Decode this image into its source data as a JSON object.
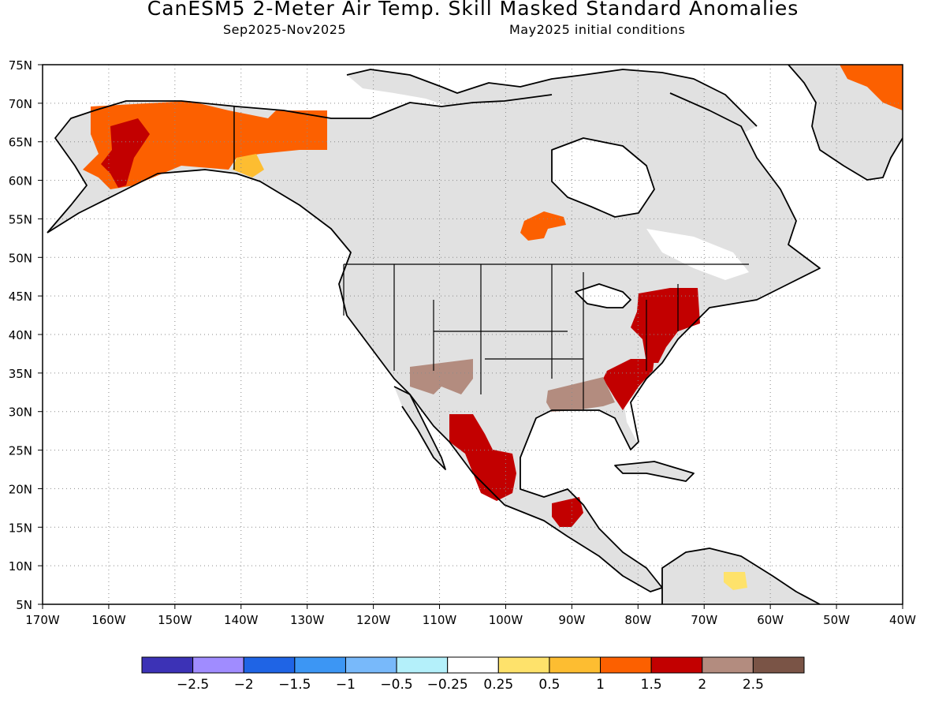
{
  "title": "CanESM5 2-Meter Air Temp. Skill Masked Standard Anomalies",
  "subtitle_left": "Sep2025-Nov2025",
  "subtitle_right": "May2025 initial conditions",
  "map": {
    "lon_min": -170,
    "lon_max": -40,
    "lat_min": 5,
    "lat_max": 75,
    "lat_labels": [
      "75N",
      "70N",
      "65N",
      "60N",
      "55N",
      "50N",
      "45N",
      "40N",
      "35N",
      "30N",
      "25N",
      "20N",
      "15N",
      "10N",
      "5N"
    ],
    "lon_labels": [
      "170W",
      "160W",
      "150W",
      "140W",
      "130W",
      "120W",
      "110W",
      "100W",
      "90W",
      "80W",
      "70W",
      "60W",
      "50W",
      "40W"
    ],
    "grid": "dotted",
    "masked_fill": "#e1e1e1",
    "anomaly_regions": [
      {
        "name": "alaska",
        "category": "1 to 1.5",
        "color": "#fc6000"
      },
      {
        "name": "western-alaska-core",
        "category": "1.5 to 2",
        "color": "#c20000"
      },
      {
        "name": "yukon-small",
        "category": "0.5 to 1",
        "color": "#fdbd31"
      },
      {
        "name": "northern-mexico",
        "category": "1.5 to 2",
        "color": "#c20000"
      },
      {
        "name": "us-northeast",
        "category": "1.5 to 2",
        "color": "#c20000"
      },
      {
        "name": "us-southeast",
        "category": "1.5 to 2",
        "color": "#c20000"
      },
      {
        "name": "us-southwest",
        "category": "2 to 2.5",
        "color": "#b38c7f"
      },
      {
        "name": "us-gulf-coast",
        "category": "2 to 2.5",
        "color": "#b38c7f"
      },
      {
        "name": "greenland",
        "category": "1 to 1.5",
        "color": "#fc6000"
      },
      {
        "name": "hudson-bay-south",
        "category": "1 to 1.5",
        "color": "#fc6000"
      },
      {
        "name": "yucatan",
        "category": "1.5 to 2",
        "color": "#c20000"
      },
      {
        "name": "venezuela",
        "category": "0.25 to 0.5",
        "color": "#fee26b"
      }
    ]
  },
  "colorbar": {
    "colors": [
      "#3c32b6",
      "#a08cff",
      "#1f64e5",
      "#3c96f4",
      "#78b9fa",
      "#b4f0fa",
      "#ffffff",
      "#fee26b",
      "#fdbd31",
      "#fc6000",
      "#c20000",
      "#b38c7f",
      "#7a5446"
    ],
    "labels": [
      "-2.5",
      "-2",
      "-1.5",
      "-1",
      "-0.5",
      "-0.25",
      "0.25",
      "0.5",
      "1",
      "1.5",
      "2",
      "2.5"
    ]
  }
}
